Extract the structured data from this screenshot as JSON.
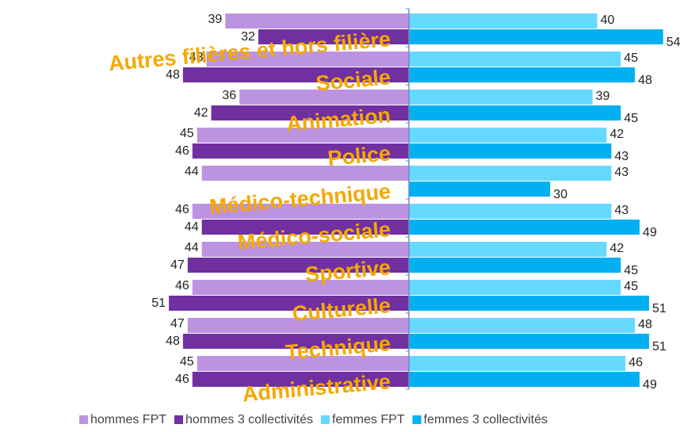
{
  "chart_data": {
    "type": "butterfly-bar",
    "categories": [
      "Autres filières et hors filière",
      "Sociale",
      "Animation",
      "Police",
      "Médico-technique",
      "Médico-sociale",
      "Sportive",
      "Culturelle",
      "Technique",
      "Administrative"
    ],
    "series": [
      {
        "name": "hommes FPT",
        "color": "#bb93e0",
        "side": "left",
        "values": [
          39,
          43,
          36,
          45,
          44,
          46,
          44,
          46,
          47,
          45
        ]
      },
      {
        "name": "hommes 3 collectivités",
        "color": "#7030a0",
        "side": "left",
        "values": [
          32,
          48,
          42,
          46,
          null,
          44,
          47,
          51,
          48,
          46
        ]
      },
      {
        "name": "femmes FPT",
        "color": "#66d9ff",
        "side": "right",
        "values": [
          40,
          45,
          39,
          42,
          43,
          43,
          42,
          45,
          48,
          46
        ]
      },
      {
        "name": "femmes 3 collectivités",
        "color": "#00b0f0",
        "side": "right",
        "values": [
          54,
          48,
          45,
          43,
          30,
          49,
          45,
          51,
          51,
          49
        ]
      }
    ]
  }
}
